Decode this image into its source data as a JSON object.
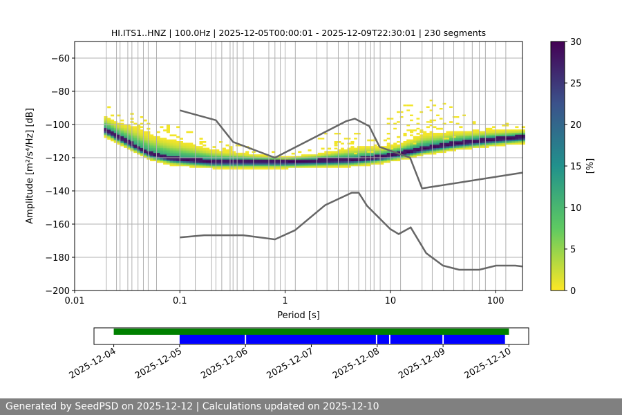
{
  "chart_data": {
    "type": "heatmap",
    "title": "HI.ITS1..HNZ | 100.0Hz | 2025-12-05T00:00:01 - 2025-12-09T22:30:01 | 230 segments",
    "xlabel": "Period [s]",
    "ylabel": "Amplitude [m²/s⁴/Hz] [dB]",
    "xscale": "log",
    "xlim": [
      0.01,
      180
    ],
    "ylim": [
      -200,
      -50
    ],
    "xticks": [
      0.01,
      0.1,
      1,
      10,
      100
    ],
    "xtick_labels": [
      "0.01",
      "0.1",
      "1",
      "10",
      "100"
    ],
    "yticks": [
      -200,
      -180,
      -160,
      -140,
      -120,
      -100,
      -80,
      -60
    ],
    "ytick_labels": [
      "−200",
      "−180",
      "−160",
      "−140",
      "−120",
      "−100",
      "−80",
      "−60"
    ],
    "grid_periods": [
      0.02,
      0.025,
      0.027,
      0.032,
      0.035,
      0.04,
      0.045,
      0.05,
      0.06,
      0.1,
      0.14,
      0.2,
      0.22,
      0.25,
      0.3,
      0.32,
      0.35,
      0.4,
      0.5,
      0.7,
      0.8,
      0.9,
      1.0,
      1.25,
      2.0,
      2.5,
      3.2,
      4.0,
      5.0,
      5.8,
      6.5,
      7.0,
      8.0,
      10.0,
      12.5,
      20.0,
      25.0,
      32.0,
      40.0,
      50.0,
      60.0,
      70.0,
      80.0,
      100.0,
      125.0
    ],
    "colorbar": {
      "label": "[%]",
      "range": [
        0,
        30
      ],
      "ticks": [
        0,
        5,
        10,
        15,
        20,
        25,
        30
      ],
      "tick_labels": [
        "0",
        "5",
        "10",
        "15",
        "20",
        "25",
        "30"
      ],
      "colormap": "viridis_r"
    },
    "psd_mode": {
      "periods": [
        0.019,
        0.025,
        0.035,
        0.05,
        0.08,
        0.12,
        0.2,
        0.5,
        1,
        2,
        4,
        6,
        8,
        12,
        20,
        40,
        80,
        180
      ],
      "db": [
        -104,
        -108,
        -113,
        -118,
        -121,
        -122,
        -123,
        -123,
        -123,
        -122.5,
        -122,
        -121,
        -120,
        -118,
        -115,
        -112,
        -110,
        -108
      ],
      "spread_below_db": 2.5,
      "spread_above_db": [
        6,
        6,
        8,
        8,
        8,
        7,
        5,
        3,
        2,
        3,
        5,
        5,
        4,
        4,
        6,
        5,
        4,
        3
      ]
    },
    "series": [
      {
        "name": "NHNM",
        "color": "#666666",
        "periods": [
          0.1,
          0.22,
          0.32,
          0.8,
          3.8,
          4.6,
          6.3,
          7.9,
          15.4,
          20,
          180
        ],
        "db": [
          -91.5,
          -97.4,
          -110.5,
          -120,
          -98,
          -96.5,
          -101,
          -113.5,
          -120,
          -138.5,
          -129
        ]
      },
      {
        "name": "NLNM",
        "color": "#666666",
        "periods": [
          0.1,
          0.17,
          0.4,
          0.8,
          1.24,
          2.4,
          4.3,
          5,
          6,
          10,
          12,
          15.6,
          21.9,
          31.6,
          45,
          70,
          101,
          154,
          180
        ],
        "db": [
          -168,
          -166.7,
          -166.7,
          -169.2,
          -163.7,
          -148.6,
          -141.1,
          -141.1,
          -149,
          -163,
          -166,
          -162,
          -177.5,
          -185,
          -187.5,
          -187.5,
          -185,
          -185,
          -185.5
        ]
      }
    ],
    "timeline": {
      "tick_labels": [
        "2025-12-04",
        "2025-12-05",
        "2025-12-06",
        "2025-12-07",
        "2025-12-08",
        "2025-12-09",
        "2025-12-10"
      ],
      "range_days": [
        -0.3,
        6.3
      ],
      "available": {
        "color": "#008000",
        "spans_days": [
          [
            0,
            6
          ]
        ]
      },
      "processed": {
        "color": "#0000ff",
        "spans_days": [
          [
            1,
            1.99
          ],
          [
            2.01,
            3.98
          ],
          [
            4.0,
            4.18
          ],
          [
            4.2,
            4.99
          ],
          [
            5.01,
            5.94
          ]
        ]
      }
    }
  },
  "footer": {
    "text": "Generated by SeedPSD on 2025-12-12 | Calculations updated on 2025-12-10"
  }
}
